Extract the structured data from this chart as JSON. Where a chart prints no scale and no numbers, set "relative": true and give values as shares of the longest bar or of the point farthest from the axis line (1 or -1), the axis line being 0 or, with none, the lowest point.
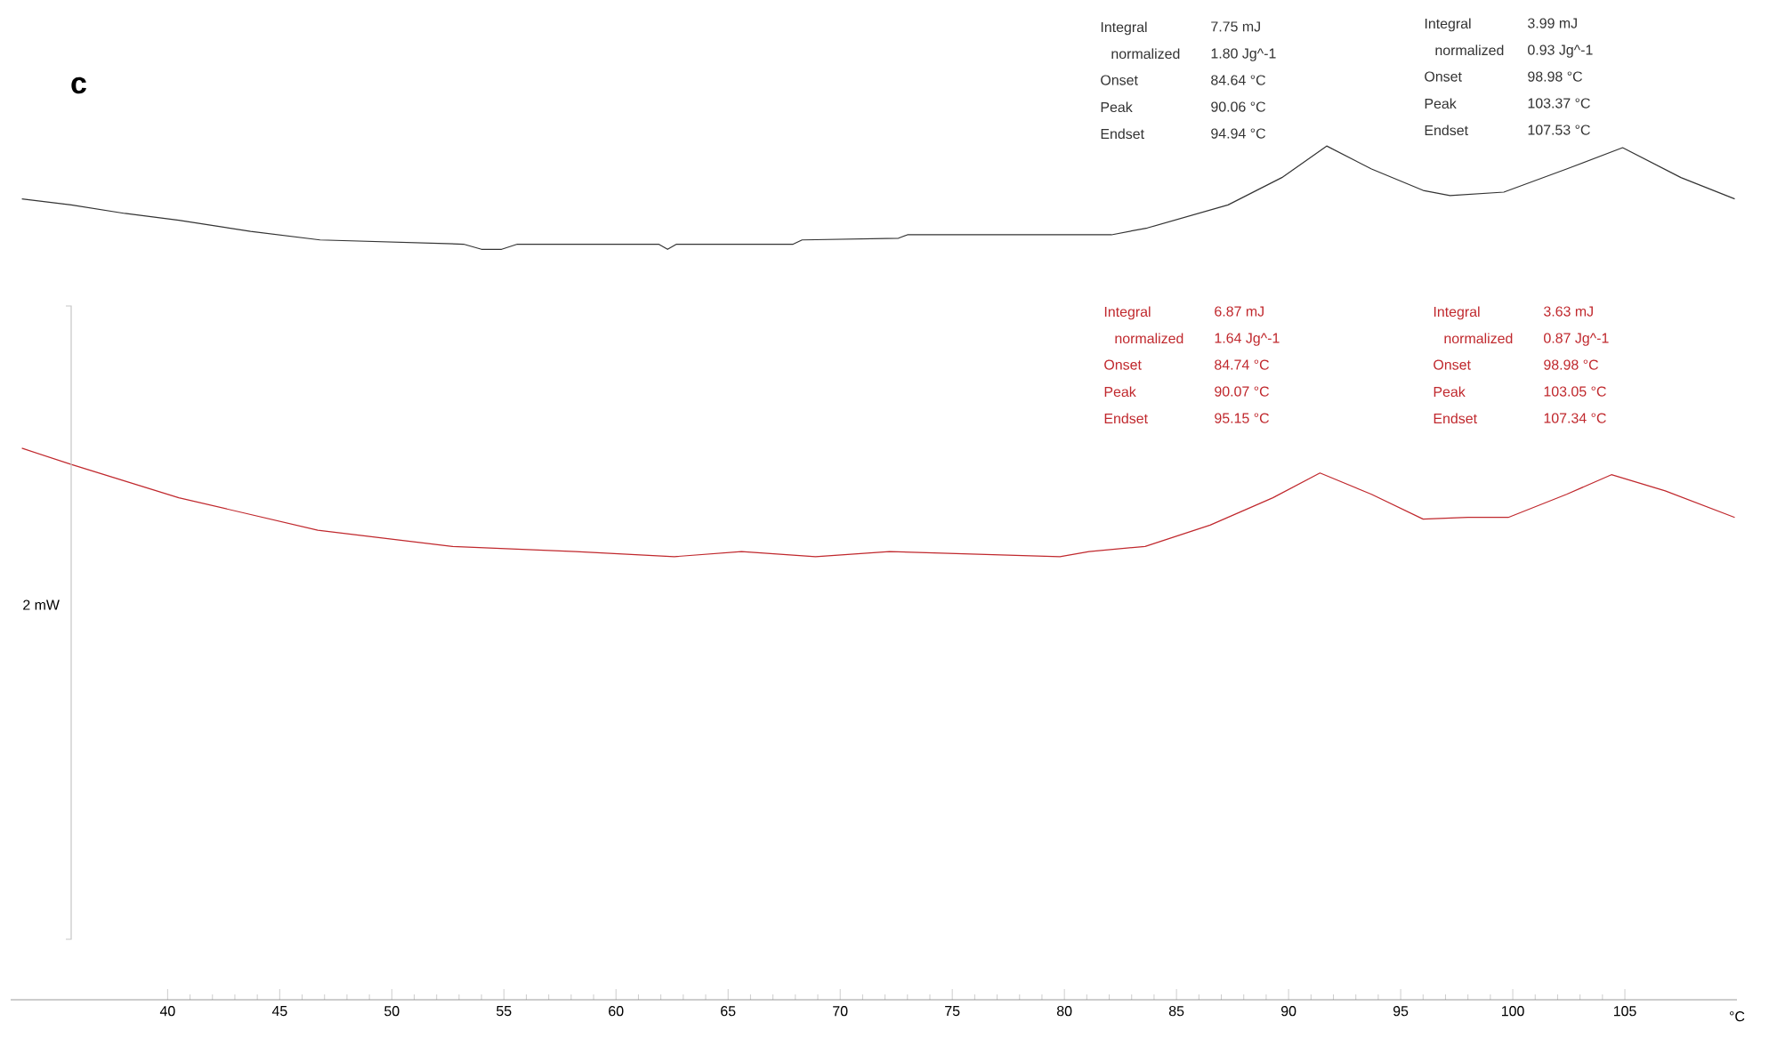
{
  "chart_data": {
    "type": "line",
    "title": "c",
    "xlabel": "°C",
    "relative": true,
    "marker": "none",
    "xlim": [
      33,
      110
    ],
    "xticks": [
      40,
      45,
      50,
      55,
      60,
      65,
      70,
      75,
      80,
      85,
      90,
      95,
      100,
      105
    ],
    "annotations": [
      "Integral",
      "7.75 mJ",
      "normalized",
      "1.80 Jg^-1",
      "Onset",
      "84.64 °C",
      "Peak",
      "90.06 °C",
      "Endset",
      "94.94 °C",
      "Integral",
      "3.99 mJ",
      "normalized",
      "0.93 Jg^-1",
      "Onset",
      "98.98 °C",
      "Peak",
      "103.37 °C",
      "Endset",
      "107.53 °C",
      "Integral",
      "6.87 mJ",
      "normalized",
      "1.64 Jg^-1",
      "Onset",
      "84.74 °C",
      "Peak",
      "90.07 °C",
      "Endset",
      "95.15 °C",
      "Integral",
      "3.63 mJ",
      "normalized",
      "0.87 Jg^-1",
      "Onset",
      "98.98 °C",
      "Peak",
      "103.05 °C",
      "Endset",
      "107.34 °C",
      "2 mW"
    ],
    "series": [
      {
        "color": "#333333",
        "x": [
          33.5,
          35.7,
          38.1,
          40.5,
          43.7,
          46.8,
          53.2,
          54.0,
          54.9,
          55.6,
          61.9,
          62.3,
          62.7,
          67.9,
          68.3,
          72.6,
          73.0,
          82.1,
          83.7,
          87.3,
          89.7,
          91.7,
          93.7,
          96.0,
          97.2,
          99.6,
          102.4,
          104.9,
          107.5,
          109.9
        ],
        "values": [
          0.938,
          0.931,
          0.921,
          0.913,
          0.9,
          0.89,
          0.885,
          0.879,
          0.879,
          0.885,
          0.885,
          0.879,
          0.885,
          0.885,
          0.89,
          0.892,
          0.896,
          0.896,
          0.904,
          0.931,
          0.963,
          1.0,
          0.973,
          0.948,
          0.942,
          0.946,
          0.973,
          0.998,
          0.963,
          0.938
        ]
      },
      {
        "color": "#c0282d",
        "x": [
          33.5,
          35.7,
          40.5,
          46.7,
          52.7,
          58.2,
          62.6,
          65.6,
          68.9,
          72.2,
          79.8,
          81.1,
          83.6,
          86.5,
          89.3,
          91.4,
          93.7,
          96.0,
          98.0,
          99.8,
          102.4,
          104.4,
          106.8,
          109.9
        ],
        "values": [
          0.646,
          0.627,
          0.588,
          0.55,
          0.531,
          0.525,
          0.519,
          0.525,
          0.519,
          0.525,
          0.519,
          0.525,
          0.531,
          0.556,
          0.588,
          0.617,
          0.592,
          0.563,
          0.565,
          0.565,
          0.592,
          0.615,
          0.596,
          0.565
        ]
      }
    ]
  }
}
